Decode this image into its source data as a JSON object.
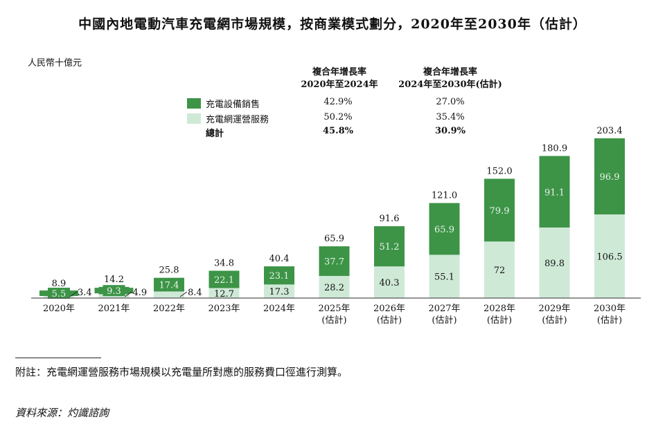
{
  "title": "中國內地電動汽車充電網市場規模，按商業模式劃分，2020年至2030年（估計）",
  "colors": {
    "equipment": "#3d9447",
    "service": "#cfe9d7"
  },
  "legend": {
    "header_1": [
      "複合年增長率",
      "2020年至2024年"
    ],
    "header_2": [
      "複合年增長率",
      "2024年至2030年(估計)"
    ],
    "rows": [
      {
        "name": "充電設備銷售",
        "cagr_1": "42.9%",
        "cagr_2": "27.0%"
      },
      {
        "name": "充電網運營服務",
        "cagr_1": "50.2%",
        "cagr_2": "35.4%"
      },
      {
        "name": "總計",
        "cagr_1": "45.8%",
        "cagr_2": "30.9%"
      }
    ]
  },
  "chart_data": {
    "type": "bar",
    "stacked": true,
    "ylabel": "人民幣十億元",
    "categories": [
      "2020年",
      "2021年",
      "2022年",
      "2023年",
      "2024年",
      "2025年\n(估計)",
      "2026年\n(估計)",
      "2027年\n(估計)",
      "2028年\n(估計)",
      "2029年\n(估計)",
      "2030年\n(估計)"
    ],
    "series": [
      {
        "name": "充電網運營服務",
        "values": [
          3.4,
          4.9,
          8.4,
          12.7,
          17.3,
          28.2,
          40.3,
          55.1,
          72.0,
          89.8,
          106.5
        ]
      },
      {
        "name": "充電設備銷售",
        "values": [
          5.5,
          9.3,
          17.4,
          22.1,
          23.1,
          37.7,
          51.2,
          65.9,
          79.9,
          91.1,
          96.9
        ]
      }
    ],
    "totals": [
      "8.9",
      "14.2",
      "25.8",
      "34.8",
      "40.4",
      "65.9",
      "91.6",
      "121.0",
      "152.0",
      "180.9",
      "203.4"
    ],
    "ylim": [
      0,
      203.4
    ],
    "grid": false
  },
  "footnote": "附註：充電網運營服務市場規模以充電量所對應的服務費口徑進行測算。",
  "source": "資料來源：灼識諮詢"
}
